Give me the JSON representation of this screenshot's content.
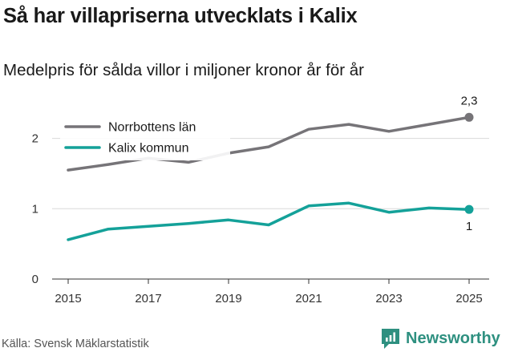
{
  "title": "Så har villapriserna utvecklats i Kalix",
  "subtitle": "Medelpris för sålda villor i miljoner kronor år för år",
  "source": "Källa: Svensk Mäklarstatistik",
  "brand": "Newsworthy",
  "colors": {
    "norrbotten": "#767478",
    "kalix": "#14a199",
    "brand": "#2e9080",
    "grid": "#d9d9d9",
    "axis": "#333333"
  },
  "chart_data": {
    "type": "line",
    "title": "Så har villapriserna utvecklats i Kalix",
    "subtitle": "Medelpris för sålda villor i miljoner kronor år för år",
    "xlabel": "",
    "ylabel": "",
    "x": [
      2015,
      2016,
      2017,
      2018,
      2019,
      2020,
      2021,
      2022,
      2023,
      2024,
      2025
    ],
    "xticks": [
      2015,
      2017,
      2019,
      2021,
      2023,
      2025
    ],
    "xtick_labels": [
      "2015",
      "2017",
      "2019",
      "2021",
      "2023",
      "2025"
    ],
    "xlim": [
      2014.6,
      2025.5
    ],
    "yticks": [
      0,
      1,
      2
    ],
    "ytick_labels": [
      "0",
      "1",
      "2"
    ],
    "ylim": [
      0,
      2.6
    ],
    "grid": true,
    "legend_position": "top-left",
    "series": [
      {
        "name": "Norrbottens län",
        "color": "#767478",
        "values": [
          1.55,
          1.63,
          1.72,
          1.66,
          1.79,
          1.88,
          2.13,
          2.2,
          2.1,
          2.2,
          2.3
        ],
        "end_label": "2,3"
      },
      {
        "name": "Kalix kommun",
        "color": "#14a199",
        "values": [
          0.56,
          0.71,
          0.75,
          0.79,
          0.84,
          0.77,
          1.04,
          1.08,
          0.95,
          1.01,
          0.99
        ],
        "end_label": "1"
      }
    ]
  }
}
